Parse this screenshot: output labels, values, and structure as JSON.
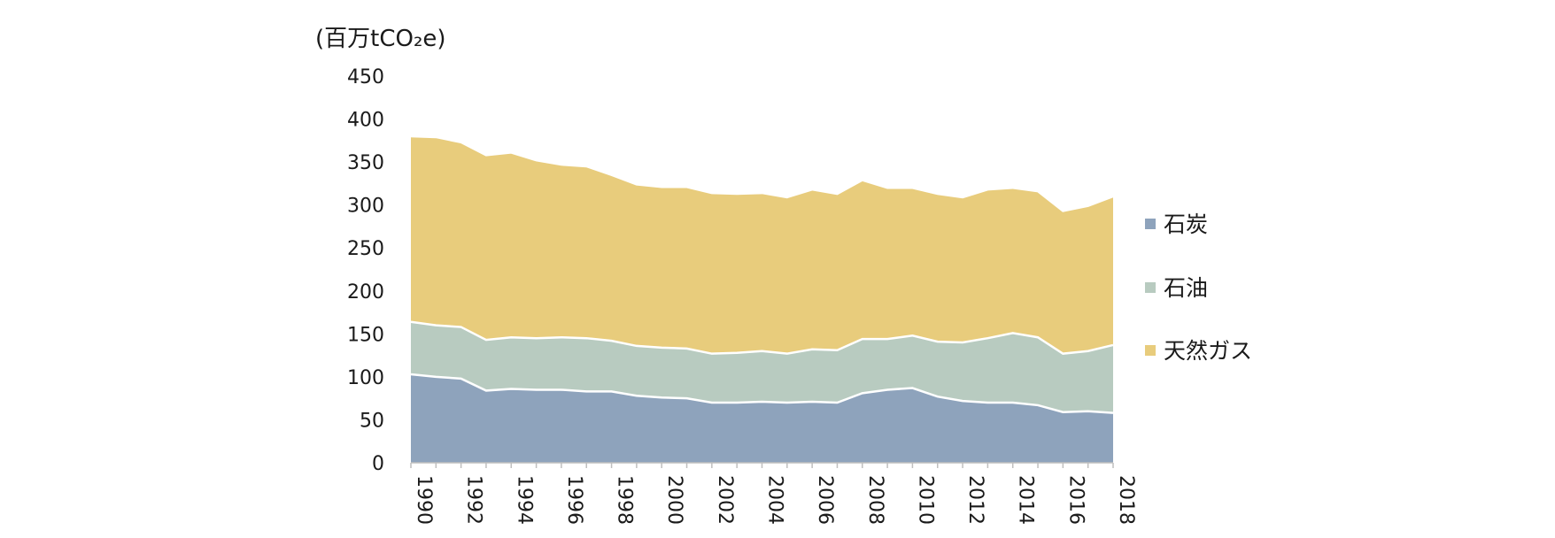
{
  "chart_data": {
    "type": "area",
    "stacked": true,
    "title": "",
    "ylabel": "(百万tCO₂e)",
    "xlabel": "",
    "ylim": [
      0,
      450
    ],
    "yticks": [
      0,
      50,
      100,
      150,
      200,
      250,
      300,
      350,
      400,
      450
    ],
    "xlim": [
      1990,
      2018
    ],
    "xticks": [
      1990,
      1992,
      1994,
      1996,
      1998,
      2000,
      2002,
      2004,
      2006,
      2008,
      2010,
      2012,
      2014,
      2016,
      2018
    ],
    "x": [
      1990,
      1991,
      1992,
      1993,
      1994,
      1995,
      1996,
      1997,
      1998,
      1999,
      2000,
      2001,
      2002,
      2003,
      2004,
      2005,
      2006,
      2007,
      2008,
      2009,
      2010,
      2011,
      2012,
      2013,
      2014,
      2015,
      2016,
      2017,
      2018
    ],
    "legend_position": "right",
    "grid": false,
    "series": [
      {
        "name": "石炭",
        "color": "#8ea3bc",
        "values": [
          103,
          100,
          98,
          84,
          86,
          85,
          85,
          83,
          83,
          78,
          76,
          75,
          70,
          70,
          71,
          70,
          71,
          70,
          81,
          85,
          87,
          77,
          72,
          70,
          70,
          67,
          59,
          60,
          58
        ]
      },
      {
        "name": "石油",
        "color": "#b8cbc0",
        "values": [
          61,
          60,
          60,
          59,
          60,
          60,
          61,
          62,
          59,
          58,
          58,
          58,
          57,
          58,
          59,
          57,
          61,
          61,
          63,
          59,
          61,
          64,
          68,
          75,
          81,
          79,
          68,
          70,
          79
        ]
      },
      {
        "name": "天然ガス",
        "color": "#e8cc7c",
        "values": [
          216,
          219,
          215,
          215,
          215,
          207,
          201,
          200,
          193,
          188,
          187,
          188,
          187,
          185,
          184,
          182,
          186,
          182,
          185,
          176,
          172,
          172,
          169,
          173,
          169,
          170,
          166,
          169,
          173
        ]
      }
    ]
  }
}
